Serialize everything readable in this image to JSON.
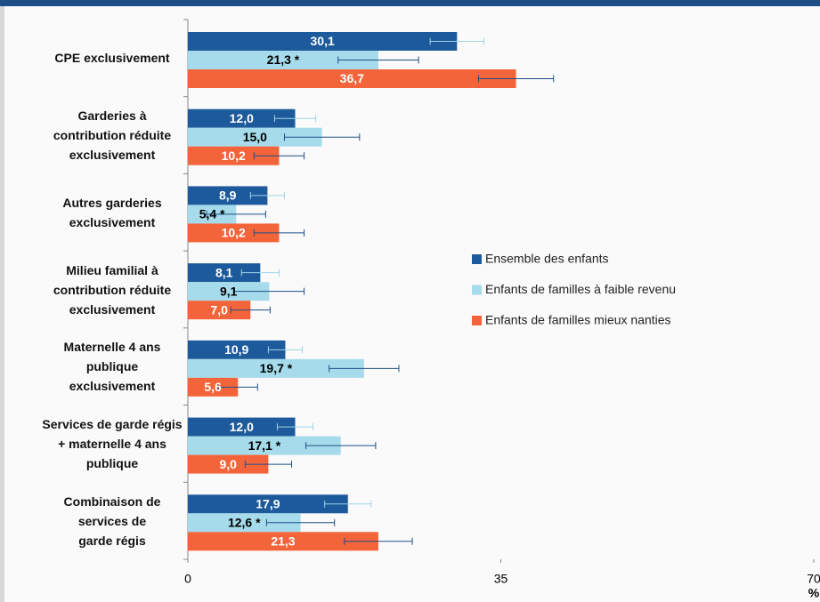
{
  "chart_data": {
    "type": "bar",
    "orientation": "horizontal",
    "categories": [
      "CPE exclusivement",
      "Garderies à\ncontribution réduite\nexclusivement",
      "Autres garderies\nexclusivement",
      "Milieu familial à\ncontribution réduite\nexclusivement",
      "Maternelle 4 ans\npublique\nexclusivement",
      "Services de garde régis\n+ maternelle 4 ans\npublique",
      "Combinaison de\nservices de\ngarde régis"
    ],
    "series": [
      {
        "name": "Ensemble des enfants",
        "color": "#1d5a9c",
        "text_color": "#ffffff",
        "values": [
          30.1,
          12.0,
          8.9,
          8.1,
          10.9,
          12.0,
          17.9
        ],
        "value_labels": [
          "30,1",
          "12,0",
          "8,9",
          "8,1",
          "10,9",
          "12,0",
          "17,9"
        ],
        "errors": [
          3.0,
          2.3,
          1.9,
          2.1,
          1.9,
          2.0,
          2.6
        ]
      },
      {
        "name": "Enfants de familles à faible revenu",
        "color": "#a5dbea",
        "text_color": "#000000",
        "values": [
          21.3,
          15.0,
          5.4,
          9.1,
          19.7,
          17.1,
          12.6
        ],
        "value_labels": [
          "21,3 *",
          "15,0",
          "5,4 *",
          "9,1",
          "19,7 *",
          "17,1 *",
          "12,6 *"
        ],
        "errors": [
          4.5,
          4.2,
          3.3,
          3.9,
          3.9,
          3.9,
          3.8
        ]
      },
      {
        "name": "Enfants de familles mieux nanties",
        "color": "#f4643a",
        "text_color": "#ffffff",
        "values": [
          36.7,
          10.2,
          10.2,
          7.0,
          5.6,
          9.0,
          21.3
        ],
        "value_labels": [
          "36,7",
          "10,2",
          "10,2",
          "7,0",
          "5,6",
          "9,0",
          "21,3"
        ],
        "errors": [
          4.2,
          2.8,
          2.8,
          2.2,
          2.2,
          2.6,
          3.8
        ]
      }
    ],
    "xlim": [
      0,
      70
    ],
    "xticks": [
      0,
      35,
      70
    ],
    "x_label": "%",
    "legend": "right"
  }
}
